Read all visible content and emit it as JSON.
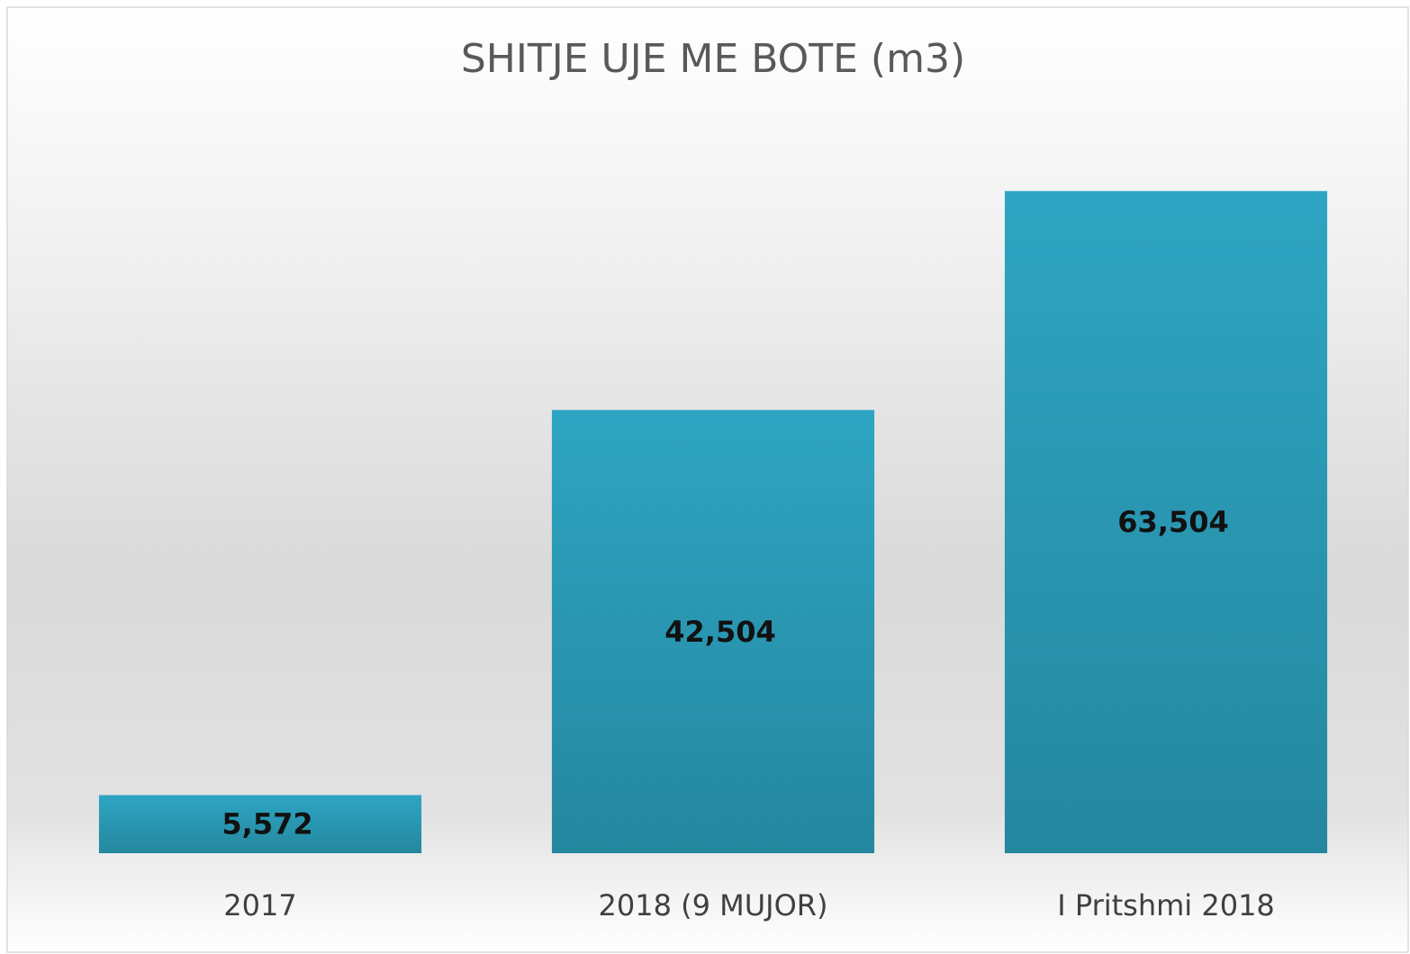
{
  "chart_data": {
    "type": "bar",
    "title": "SHITJE UJE ME BOTE (m3)",
    "categories": [
      "2017",
      "2018 (9 MUJOR)",
      "I Pritshmi 2018"
    ],
    "values": [
      5572,
      42504,
      63504
    ],
    "value_labels": [
      "5,572",
      "42,504",
      "63,504"
    ],
    "color": "#2ba0be",
    "ylim": [
      0,
      70000
    ]
  }
}
